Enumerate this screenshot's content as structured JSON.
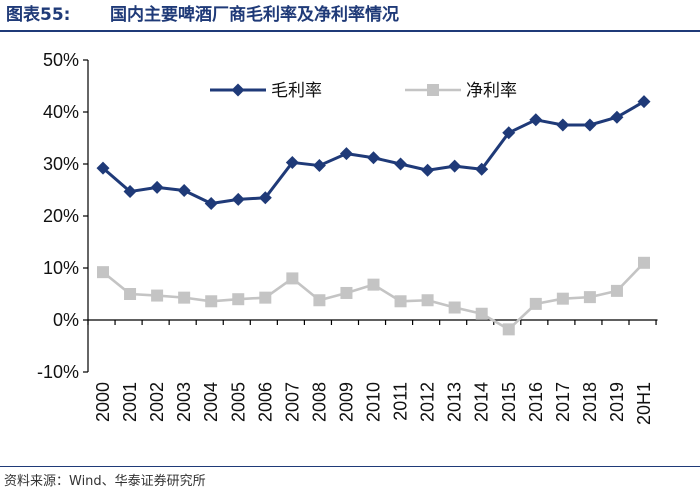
{
  "figure": {
    "number_label": "图表55:",
    "caption": "国内主要啤酒厂商毛利率及净利率情况",
    "source": "资料来源：Wind、华泰证券研究所"
  },
  "colors": {
    "gross": "#1f3a78",
    "net": "#c4c4c4",
    "title": "#1f3a78"
  },
  "chart_data": {
    "type": "line",
    "title": "",
    "xlabel": "",
    "ylabel": "",
    "x": [
      "2000",
      "2001",
      "2002",
      "2003",
      "2004",
      "2005",
      "2006",
      "2007",
      "2008",
      "2009",
      "2010",
      "2011",
      "2012",
      "2013",
      "2014",
      "2015",
      "2016",
      "2017",
      "2018",
      "2019",
      "20H1"
    ],
    "ylim": [
      -10,
      50
    ],
    "yticks": [
      -10,
      0,
      10,
      20,
      30,
      40,
      50
    ],
    "ytick_labels": [
      "-10%",
      "0%",
      "10%",
      "20%",
      "30%",
      "40%",
      "50%"
    ],
    "grid": false,
    "legend": "top",
    "series": [
      {
        "name": "毛利率",
        "marker": "diamond",
        "color": "#1f3a78",
        "values": [
          29.2,
          24.7,
          25.5,
          24.9,
          22.4,
          23.2,
          23.5,
          30.3,
          29.7,
          32.0,
          31.2,
          30.0,
          28.8,
          29.6,
          29.0,
          36.0,
          38.5,
          37.5,
          37.5,
          39.0,
          42.0
        ]
      },
      {
        "name": "净利率",
        "marker": "square",
        "color": "#c4c4c4",
        "values": [
          9.2,
          5.0,
          4.7,
          4.3,
          3.6,
          4.0,
          4.3,
          8.0,
          3.8,
          5.2,
          6.8,
          3.6,
          3.8,
          2.4,
          1.2,
          -1.8,
          3.1,
          4.1,
          4.4,
          5.6,
          11.0
        ]
      }
    ]
  }
}
